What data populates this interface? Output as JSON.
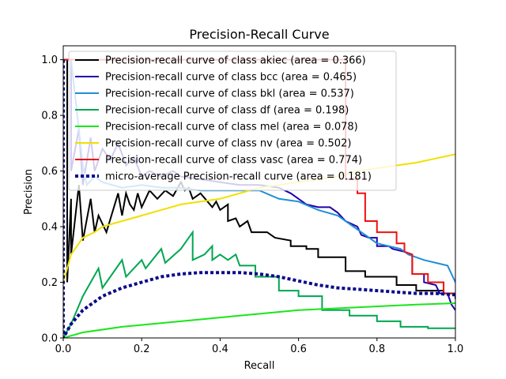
{
  "chart_data": {
    "type": "line",
    "title": "Precision-Recall Curve",
    "xlabel": "Recall",
    "ylabel": "Precision",
    "xlim": [
      0.0,
      1.0
    ],
    "ylim": [
      0.0,
      1.05
    ],
    "xticks": [
      "0.0",
      "0.2",
      "0.4",
      "0.6",
      "0.8",
      "1.0"
    ],
    "yticks": [
      "0.0",
      "0.2",
      "0.4",
      "0.6",
      "0.8",
      "1.0"
    ],
    "legend_position": "upper-left",
    "grid": false,
    "series": [
      {
        "name": "Precision-recall curve of class akiec (area = 0.366)",
        "color": "#000000",
        "dash": "solid",
        "points": [
          [
            0,
            1.0
          ],
          [
            0.01,
            1.0
          ],
          [
            0.01,
            0.2
          ],
          [
            0.02,
            0.5
          ],
          [
            0.02,
            0.3
          ],
          [
            0.04,
            0.55
          ],
          [
            0.05,
            0.35
          ],
          [
            0.07,
            0.5
          ],
          [
            0.08,
            0.38
          ],
          [
            0.09,
            0.44
          ],
          [
            0.11,
            0.38
          ],
          [
            0.14,
            0.52
          ],
          [
            0.15,
            0.44
          ],
          [
            0.16,
            0.52
          ],
          [
            0.17,
            0.48
          ],
          [
            0.18,
            0.46
          ],
          [
            0.19,
            0.52
          ],
          [
            0.2,
            0.47
          ],
          [
            0.22,
            0.53
          ],
          [
            0.24,
            0.5
          ],
          [
            0.26,
            0.53
          ],
          [
            0.28,
            0.51
          ],
          [
            0.3,
            0.56
          ],
          [
            0.31,
            0.53
          ],
          [
            0.32,
            0.54
          ],
          [
            0.33,
            0.5
          ],
          [
            0.35,
            0.52
          ],
          [
            0.38,
            0.47
          ],
          [
            0.39,
            0.49
          ],
          [
            0.4,
            0.46
          ],
          [
            0.42,
            0.48
          ],
          [
            0.42,
            0.42
          ],
          [
            0.44,
            0.43
          ],
          [
            0.45,
            0.4
          ],
          [
            0.47,
            0.42
          ],
          [
            0.48,
            0.38
          ],
          [
            0.52,
            0.38
          ],
          [
            0.54,
            0.36
          ],
          [
            0.58,
            0.35
          ],
          [
            0.58,
            0.33
          ],
          [
            0.62,
            0.33
          ],
          [
            0.62,
            0.32
          ],
          [
            0.65,
            0.32
          ],
          [
            0.65,
            0.29
          ],
          [
            0.72,
            0.29
          ],
          [
            0.72,
            0.24
          ],
          [
            0.77,
            0.24
          ],
          [
            0.77,
            0.22
          ],
          [
            0.85,
            0.22
          ],
          [
            0.85,
            0.19
          ],
          [
            0.9,
            0.19
          ],
          [
            0.9,
            0.17
          ],
          [
            0.97,
            0.17
          ],
          [
            0.97,
            0.16
          ],
          [
            1.0,
            0.16
          ],
          [
            1.0,
            0.14
          ]
        ]
      },
      {
        "name": "Precision-recall curve of class bcc (area = 0.465)",
        "color": "#2200aa",
        "dash": "solid",
        "points": [
          [
            0,
            1.0
          ],
          [
            0.02,
            1.0
          ],
          [
            0.02,
            0.6
          ],
          [
            0.04,
            0.75
          ],
          [
            0.05,
            0.55
          ],
          [
            0.07,
            0.72
          ],
          [
            0.08,
            0.6
          ],
          [
            0.1,
            0.68
          ],
          [
            0.12,
            0.64
          ],
          [
            0.14,
            0.7
          ],
          [
            0.16,
            0.62
          ],
          [
            0.18,
            0.65
          ],
          [
            0.2,
            0.58
          ],
          [
            0.22,
            0.6
          ],
          [
            0.25,
            0.58
          ],
          [
            0.28,
            0.6
          ],
          [
            0.3,
            0.58
          ],
          [
            0.35,
            0.57
          ],
          [
            0.4,
            0.56
          ],
          [
            0.45,
            0.55
          ],
          [
            0.5,
            0.55
          ],
          [
            0.55,
            0.54
          ],
          [
            0.58,
            0.52
          ],
          [
            0.6,
            0.5
          ],
          [
            0.62,
            0.48
          ],
          [
            0.65,
            0.47
          ],
          [
            0.68,
            0.47
          ],
          [
            0.7,
            0.45
          ],
          [
            0.72,
            0.42
          ],
          [
            0.75,
            0.4
          ],
          [
            0.76,
            0.37
          ],
          [
            0.78,
            0.36
          ],
          [
            0.8,
            0.36
          ],
          [
            0.8,
            0.33
          ],
          [
            0.83,
            0.33
          ],
          [
            0.84,
            0.32
          ],
          [
            0.87,
            0.31
          ],
          [
            0.89,
            0.3
          ],
          [
            0.89,
            0.23
          ],
          [
            0.92,
            0.23
          ],
          [
            0.92,
            0.2
          ],
          [
            0.95,
            0.19
          ],
          [
            0.96,
            0.16
          ],
          [
            0.98,
            0.16
          ],
          [
            0.99,
            0.12
          ],
          [
            1.0,
            0.1
          ]
        ]
      },
      {
        "name": "Precision-recall curve of class bkl (area = 0.537)",
        "color": "#1f8fd6",
        "dash": "solid",
        "points": [
          [
            0,
            1.0
          ],
          [
            0.02,
            1.0
          ],
          [
            0.05,
            0.62
          ],
          [
            0.06,
            0.55
          ],
          [
            0.08,
            0.58
          ],
          [
            0.1,
            0.56
          ],
          [
            0.15,
            0.54
          ],
          [
            0.2,
            0.55
          ],
          [
            0.25,
            0.54
          ],
          [
            0.3,
            0.54
          ],
          [
            0.35,
            0.53
          ],
          [
            0.4,
            0.53
          ],
          [
            0.45,
            0.53
          ],
          [
            0.5,
            0.53
          ],
          [
            0.55,
            0.5
          ],
          [
            0.6,
            0.49
          ],
          [
            0.65,
            0.46
          ],
          [
            0.7,
            0.44
          ],
          [
            0.72,
            0.42
          ],
          [
            0.74,
            0.4
          ],
          [
            0.76,
            0.38
          ],
          [
            0.78,
            0.36
          ],
          [
            0.8,
            0.34
          ],
          [
            0.83,
            0.33
          ],
          [
            0.86,
            0.32
          ],
          [
            0.88,
            0.3
          ],
          [
            0.9,
            0.29
          ],
          [
            0.92,
            0.28
          ],
          [
            0.95,
            0.27
          ],
          [
            0.98,
            0.26
          ],
          [
            1.0,
            0.2
          ]
        ]
      },
      {
        "name": "Precision-recall curve of class df (area = 0.198)",
        "color": "#00a651",
        "dash": "solid",
        "points": [
          [
            0,
            0.0
          ],
          [
            0.02,
            0.05
          ],
          [
            0.05,
            0.15
          ],
          [
            0.09,
            0.25
          ],
          [
            0.1,
            0.18
          ],
          [
            0.15,
            0.28
          ],
          [
            0.16,
            0.22
          ],
          [
            0.2,
            0.28
          ],
          [
            0.21,
            0.25
          ],
          [
            0.25,
            0.32
          ],
          [
            0.26,
            0.27
          ],
          [
            0.3,
            0.32
          ],
          [
            0.33,
            0.38
          ],
          [
            0.33,
            0.28
          ],
          [
            0.36,
            0.3
          ],
          [
            0.38,
            0.33
          ],
          [
            0.38,
            0.28
          ],
          [
            0.4,
            0.3
          ],
          [
            0.42,
            0.28
          ],
          [
            0.44,
            0.3
          ],
          [
            0.45,
            0.26
          ],
          [
            0.49,
            0.26
          ],
          [
            0.49,
            0.22
          ],
          [
            0.55,
            0.22
          ],
          [
            0.55,
            0.17
          ],
          [
            0.6,
            0.17
          ],
          [
            0.6,
            0.15
          ],
          [
            0.66,
            0.15
          ],
          [
            0.66,
            0.1
          ],
          [
            0.73,
            0.1
          ],
          [
            0.73,
            0.08
          ],
          [
            0.8,
            0.08
          ],
          [
            0.8,
            0.06
          ],
          [
            0.86,
            0.06
          ],
          [
            0.86,
            0.04
          ],
          [
            0.93,
            0.04
          ],
          [
            0.93,
            0.035
          ],
          [
            1.0,
            0.035
          ]
        ]
      },
      {
        "name": "Precision-recall curve of class mel (area = 0.078)",
        "color": "#19e619",
        "dash": "solid",
        "points": [
          [
            0,
            0.0
          ],
          [
            0.05,
            0.02
          ],
          [
            0.15,
            0.04
          ],
          [
            0.3,
            0.06
          ],
          [
            0.45,
            0.08
          ],
          [
            0.6,
            0.1
          ],
          [
            0.75,
            0.11
          ],
          [
            0.9,
            0.12
          ],
          [
            1.0,
            0.125
          ]
        ]
      },
      {
        "name": "Precision-recall curve of class nv (area = 0.502)",
        "color": "#f0e000",
        "dash": "solid",
        "points": [
          [
            0,
            0.2
          ],
          [
            0.01,
            0.25
          ],
          [
            0.02,
            0.3
          ],
          [
            0.03,
            0.32
          ],
          [
            0.05,
            0.36
          ],
          [
            0.08,
            0.38
          ],
          [
            0.1,
            0.4
          ],
          [
            0.15,
            0.42
          ],
          [
            0.2,
            0.44
          ],
          [
            0.25,
            0.46
          ],
          [
            0.3,
            0.48
          ],
          [
            0.35,
            0.49
          ],
          [
            0.4,
            0.5
          ],
          [
            0.45,
            0.52
          ],
          [
            0.5,
            0.54
          ],
          [
            0.55,
            0.55
          ],
          [
            0.6,
            0.56
          ],
          [
            0.65,
            0.57
          ],
          [
            0.7,
            0.58
          ],
          [
            0.75,
            0.6
          ],
          [
            0.8,
            0.61
          ],
          [
            0.85,
            0.62
          ],
          [
            0.9,
            0.63
          ],
          [
            0.95,
            0.645
          ],
          [
            1.0,
            0.66
          ]
        ]
      },
      {
        "name": "Precision-recall curve of class vasc (area = 0.774)",
        "color": "#ee1111",
        "dash": "solid",
        "points": [
          [
            0,
            1.0
          ],
          [
            0.72,
            1.0
          ],
          [
            0.72,
            0.57
          ],
          [
            0.75,
            0.57
          ],
          [
            0.75,
            0.52
          ],
          [
            0.77,
            0.52
          ],
          [
            0.77,
            0.42
          ],
          [
            0.8,
            0.42
          ],
          [
            0.8,
            0.38
          ],
          [
            0.85,
            0.38
          ],
          [
            0.85,
            0.34
          ],
          [
            0.87,
            0.34
          ],
          [
            0.87,
            0.31
          ],
          [
            0.89,
            0.3
          ],
          [
            0.89,
            0.23
          ],
          [
            0.93,
            0.23
          ],
          [
            0.93,
            0.2
          ],
          [
            0.97,
            0.2
          ],
          [
            0.97,
            0.16
          ],
          [
            1.0,
            0.16
          ]
        ]
      },
      {
        "name": "micro-average Precision-recall curve (area = 0.181)",
        "color": "#0a0a8a",
        "dash": "dotted",
        "points": [
          [
            0,
            1.0
          ],
          [
            0,
            0.0
          ],
          [
            0.02,
            0.05
          ],
          [
            0.05,
            0.1
          ],
          [
            0.08,
            0.13
          ],
          [
            0.1,
            0.15
          ],
          [
            0.15,
            0.18
          ],
          [
            0.2,
            0.2
          ],
          [
            0.25,
            0.22
          ],
          [
            0.3,
            0.23
          ],
          [
            0.35,
            0.235
          ],
          [
            0.4,
            0.235
          ],
          [
            0.45,
            0.235
          ],
          [
            0.5,
            0.23
          ],
          [
            0.55,
            0.22
          ],
          [
            0.6,
            0.205
          ],
          [
            0.65,
            0.19
          ],
          [
            0.7,
            0.18
          ],
          [
            0.75,
            0.175
          ],
          [
            0.8,
            0.17
          ],
          [
            0.85,
            0.165
          ],
          [
            0.9,
            0.16
          ],
          [
            0.95,
            0.16
          ],
          [
            1.0,
            0.155
          ]
        ]
      }
    ]
  }
}
